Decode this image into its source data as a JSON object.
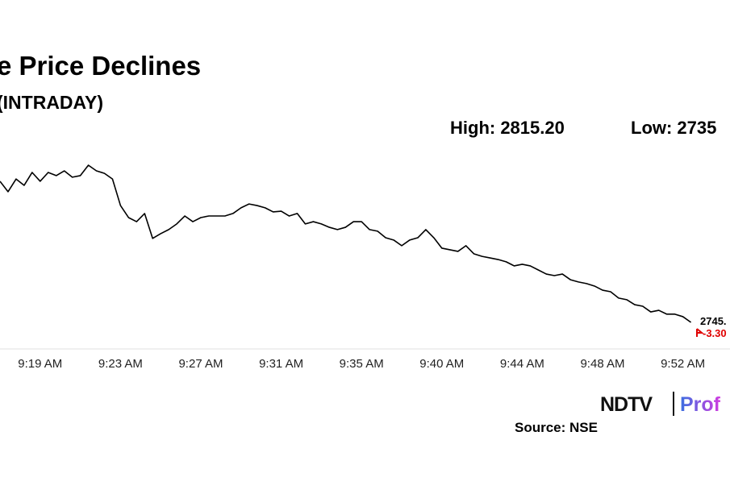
{
  "chart_data": {
    "type": "line",
    "title": "e Price Declines",
    "subtitle": "(INTRADAY)",
    "high_label": "High: 2815.20",
    "low_label": "Low: 2735",
    "end_value_label": "2745.",
    "change_label": "-3.30",
    "source": "Source: NSE",
    "brand": "NDTV",
    "brand_suffix": "Prof",
    "color": "#000000",
    "ylim": [
      2730,
      2830
    ],
    "categories": [
      null,
      null,
      null,
      null,
      null,
      "9:19 AM",
      null,
      null,
      null,
      null,
      null,
      null,
      null,
      null,
      null,
      "9:23 AM",
      null,
      null,
      null,
      null,
      null,
      null,
      null,
      null,
      null,
      "9:27 AM",
      null,
      null,
      null,
      null,
      null,
      null,
      null,
      null,
      null,
      "9:31 AM",
      null,
      null,
      null,
      null,
      null,
      null,
      null,
      null,
      null,
      "9:35 AM",
      null,
      null,
      null,
      null,
      null,
      null,
      null,
      null,
      null,
      "9:40 AM",
      null,
      null,
      null,
      null,
      null,
      null,
      null,
      null,
      null,
      "9:44 AM",
      null,
      null,
      null,
      null,
      null,
      null,
      null,
      null,
      null,
      "9:48 AM",
      null,
      null,
      null,
      null,
      null,
      null,
      null,
      null,
      null,
      "9:52 AM",
      null
    ],
    "values": [
      2807.2,
      2802.6,
      2808.2,
      2805.4,
      2811.1,
      2807.2,
      2811.1,
      2809.7,
      2811.8,
      2809.0,
      2809.7,
      2814.3,
      2811.8,
      2810.7,
      2808.2,
      2796.5,
      2791.2,
      2789.4,
      2793.0,
      2782.0,
      2784.1,
      2785.9,
      2788.4,
      2791.9,
      2789.4,
      2791.2,
      2791.9,
      2791.9,
      2791.9,
      2793.0,
      2795.5,
      2797.2,
      2796.5,
      2795.5,
      2793.7,
      2794.0,
      2791.9,
      2793.0,
      2788.4,
      2789.4,
      2788.4,
      2786.9,
      2785.9,
      2786.9,
      2789.4,
      2789.4,
      2785.9,
      2785.2,
      2782.3,
      2781.3,
      2778.8,
      2781.3,
      2782.3,
      2785.9,
      2782.3,
      2777.7,
      2777.0,
      2776.3,
      2778.8,
      2775.2,
      2774.1,
      2773.4,
      2772.7,
      2771.7,
      2769.9,
      2770.6,
      2769.9,
      2768.1,
      2766.3,
      2765.6,
      2766.3,
      2763.8,
      2762.8,
      2762.1,
      2761.0,
      2759.2,
      2758.5,
      2755.7,
      2755.0,
      2752.8,
      2752.1,
      2749.6,
      2750.3,
      2748.6,
      2748.6,
      2747.5,
      2745.0
    ]
  }
}
